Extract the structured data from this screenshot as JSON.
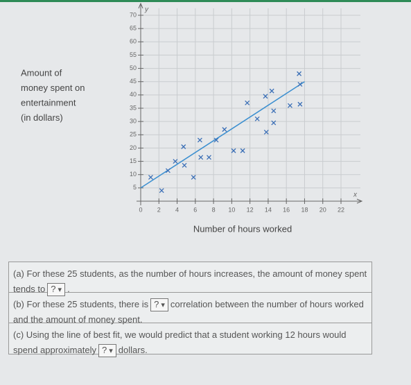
{
  "chart_data": {
    "type": "scatter",
    "y_label": [
      "Amount of",
      "money spent on",
      "entertainment",
      "(in dollars)"
    ],
    "x_label": "Number of hours worked",
    "x_axis_letter": "x",
    "y_axis_letter": "y",
    "x": [
      1.1,
      2.3,
      3,
      3.8,
      4.7,
      4.8,
      5.8,
      6.5,
      6.6,
      7.5,
      8.3,
      9.2,
      10.2,
      11.2,
      11.7,
      12.8,
      13.7,
      13.8,
      14.4,
      14.6,
      14.6,
      16.4,
      17.4,
      17.5,
      17.5
    ],
    "values": [
      9,
      4,
      11.5,
      15,
      20.5,
      13.5,
      9,
      23,
      16.5,
      16.5,
      23,
      27,
      19,
      19,
      37,
      31,
      39.5,
      26,
      41.5,
      34,
      29.5,
      36,
      48,
      44,
      36.5
    ],
    "color": "#3b6fb6",
    "fit_line": {
      "x": [
        0,
        18
      ],
      "values": [
        5,
        45
      ],
      "color": "#3b8fd0"
    },
    "xlim": [
      0,
      22
    ],
    "ylim": [
      0,
      70
    ],
    "xticks": [
      0,
      2,
      4,
      6,
      8,
      10,
      12,
      14,
      16,
      18,
      20,
      22
    ],
    "yticks": [
      5,
      10,
      15,
      20,
      25,
      30,
      35,
      40,
      45,
      50,
      55,
      60,
      65,
      70
    ],
    "grid": true
  },
  "questions": [
    {
      "text": "(a) For these 25 students, as the number of hours increases, the amount of money spent tends to",
      "choice": "?",
      "after": "."
    },
    {
      "text": "(b) For these 25 students, there is",
      "choice": "?",
      "after": "correlation between the number of hours worked and the amount of money spent."
    },
    {
      "text": "(c) Using the line of best fit, we would predict that a student working 12 hours would spend approximately",
      "choice": "?",
      "after": "dollars."
    }
  ]
}
